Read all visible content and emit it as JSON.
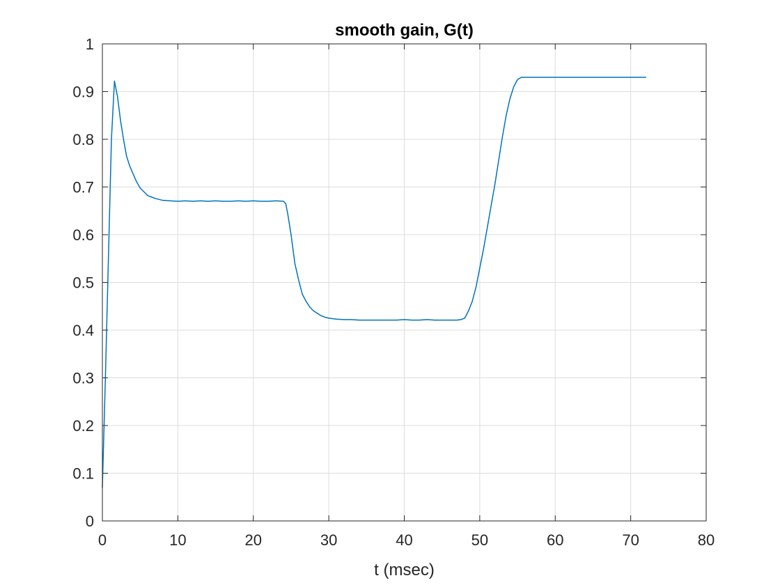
{
  "chart_data": {
    "type": "line",
    "title": "smooth gain, G(t)",
    "xlabel": "t (msec)",
    "ylabel": "",
    "xlim": [
      0,
      80
    ],
    "ylim": [
      0,
      1
    ],
    "xticks": [
      0,
      10,
      20,
      30,
      40,
      50,
      60,
      70,
      80
    ],
    "xtick_labels": [
      "0",
      "10",
      "20",
      "30",
      "40",
      "50",
      "60",
      "70",
      "80"
    ],
    "yticks": [
      0,
      0.1,
      0.2,
      0.3,
      0.4,
      0.5,
      0.6,
      0.7,
      0.8,
      0.9,
      1
    ],
    "ytick_labels": [
      "0",
      "0.1",
      "0.2",
      "0.3",
      "0.4",
      "0.5",
      "0.6",
      "0.7",
      "0.8",
      "0.9",
      "1"
    ],
    "grid": true,
    "colors": {
      "line": "#0072BD",
      "grid": "#dcdcdc",
      "axis": "#262626"
    },
    "series": [
      {
        "x": [
          0.0,
          0.4,
          0.8,
          1.2,
          1.6,
          2.0,
          2.4,
          2.8,
          3.2,
          3.6,
          4.0,
          4.5,
          5.0,
          5.5,
          6.0,
          6.5,
          7.0,
          7.5,
          8.0,
          9.0,
          10.0,
          11.0,
          12.0,
          13.0,
          14.0,
          15.0,
          16.0,
          17.0,
          18.0,
          19.0,
          20.0,
          21.0,
          22.0,
          23.0,
          24.0,
          24.3,
          24.6,
          25.0,
          25.5,
          26.0,
          26.5,
          27.0,
          27.5,
          28.0,
          28.5,
          29.0,
          29.5,
          30.0,
          31.0,
          32.0,
          33.0,
          34.0,
          35.0,
          36.0,
          37.0,
          38.0,
          39.0,
          40.0,
          41.0,
          42.0,
          43.0,
          44.0,
          45.0,
          46.0,
          47.0,
          47.5,
          48.0,
          48.5,
          49.0,
          49.5,
          50.0,
          50.5,
          51.0,
          51.5,
          52.0,
          52.5,
          53.0,
          53.5,
          54.0,
          54.5,
          55.0,
          55.5,
          56.0,
          57.0,
          58.0,
          60.0,
          62.0,
          64.0,
          66.0,
          68.0,
          70.0,
          72.0
        ],
        "y": [
          0.07,
          0.3,
          0.55,
          0.8,
          0.922,
          0.89,
          0.84,
          0.8,
          0.765,
          0.745,
          0.73,
          0.712,
          0.698,
          0.69,
          0.682,
          0.679,
          0.676,
          0.674,
          0.672,
          0.671,
          0.67,
          0.671,
          0.67,
          0.671,
          0.67,
          0.671,
          0.67,
          0.67,
          0.671,
          0.67,
          0.671,
          0.67,
          0.67,
          0.671,
          0.67,
          0.665,
          0.64,
          0.6,
          0.54,
          0.505,
          0.475,
          0.46,
          0.448,
          0.44,
          0.435,
          0.43,
          0.427,
          0.425,
          0.423,
          0.422,
          0.422,
          0.421,
          0.421,
          0.421,
          0.421,
          0.421,
          0.421,
          0.422,
          0.421,
          0.421,
          0.422,
          0.421,
          0.421,
          0.421,
          0.421,
          0.422,
          0.425,
          0.44,
          0.46,
          0.49,
          0.53,
          0.57,
          0.615,
          0.66,
          0.705,
          0.755,
          0.805,
          0.85,
          0.885,
          0.91,
          0.925,
          0.93,
          0.93,
          0.93,
          0.93,
          0.93,
          0.93,
          0.93,
          0.93,
          0.93,
          0.93,
          0.93
        ]
      }
    ]
  }
}
